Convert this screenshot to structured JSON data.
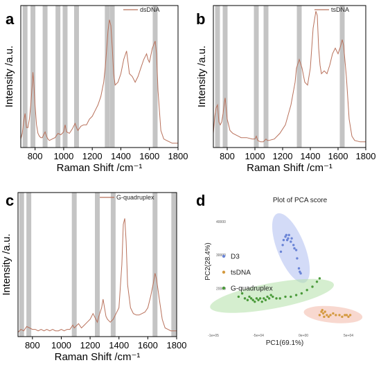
{
  "colors": {
    "spectrum_line": "#b8705a",
    "band": "#c4c4c4",
    "d3": "#6a84d6",
    "tsdna": "#d49a40",
    "gquad": "#4a9a3a",
    "d3_ellipse": "#aebdf0",
    "tsdna_ellipse": "#f2b8a8",
    "gquad_ellipse": "#b3e0a8"
  },
  "chart_data": [
    {
      "panel": "a",
      "type": "line",
      "xlabel": "Raman Shift /cm⁻¹",
      "ylabel": "Intensity /a.u.",
      "xlim": [
        700,
        1800
      ],
      "ylim": [
        0,
        1
      ],
      "xticks": [
        800,
        1000,
        1200,
        1400,
        1600,
        1800
      ],
      "legend": "dsDNA",
      "bands": [
        730,
        785,
        870,
        960,
        1010,
        1090,
        1305,
        1340,
        1640
      ],
      "series": [
        {
          "name": "dsDNA",
          "x": [
            700,
            710,
            720,
            730,
            740,
            750,
            760,
            770,
            780,
            785,
            790,
            800,
            810,
            820,
            830,
            840,
            850,
            860,
            870,
            880,
            890,
            900,
            920,
            940,
            960,
            980,
            1000,
            1010,
            1020,
            1040,
            1060,
            1080,
            1090,
            1100,
            1120,
            1140,
            1160,
            1180,
            1200,
            1220,
            1240,
            1260,
            1280,
            1290,
            1300,
            1310,
            1320,
            1330,
            1340,
            1350,
            1360,
            1380,
            1400,
            1420,
            1440,
            1450,
            1460,
            1480,
            1500,
            1520,
            1540,
            1560,
            1580,
            1590,
            1600,
            1620,
            1640,
            1650,
            1660,
            1680,
            1700,
            1720,
            1740,
            1760,
            1780,
            1800
          ],
          "y": [
            0.06,
            0.1,
            0.18,
            0.24,
            0.14,
            0.14,
            0.2,
            0.3,
            0.44,
            0.53,
            0.47,
            0.3,
            0.16,
            0.1,
            0.08,
            0.07,
            0.07,
            0.09,
            0.11,
            0.08,
            0.06,
            0.05,
            0.06,
            0.07,
            0.1,
            0.09,
            0.11,
            0.16,
            0.11,
            0.1,
            0.13,
            0.17,
            0.14,
            0.12,
            0.15,
            0.16,
            0.16,
            0.2,
            0.22,
            0.26,
            0.3,
            0.36,
            0.46,
            0.56,
            0.68,
            0.82,
            0.9,
            0.86,
            0.7,
            0.52,
            0.44,
            0.46,
            0.52,
            0.62,
            0.68,
            0.6,
            0.52,
            0.5,
            0.46,
            0.5,
            0.56,
            0.62,
            0.66,
            0.62,
            0.6,
            0.7,
            0.75,
            0.66,
            0.4,
            0.12,
            0.06,
            0.05,
            0.04,
            0.03,
            0.03,
            0.03
          ]
        }
      ]
    },
    {
      "panel": "b",
      "type": "line",
      "xlabel": "Raman Shift /cm⁻¹",
      "ylabel": "Intensity /a.u.",
      "xlim": [
        700,
        1800
      ],
      "ylim": [
        0,
        1
      ],
      "xticks": [
        800,
        1000,
        1200,
        1400,
        1600,
        1800
      ],
      "legend": "tsDNA",
      "bands": [
        730,
        785,
        1010,
        1080,
        1320,
        1630
      ],
      "series": [
        {
          "name": "tsDNA",
          "x": [
            700,
            710,
            720,
            730,
            740,
            750,
            760,
            770,
            780,
            785,
            790,
            800,
            820,
            840,
            860,
            880,
            900,
            940,
            980,
            1000,
            1010,
            1020,
            1040,
            1060,
            1080,
            1090,
            1100,
            1140,
            1180,
            1220,
            1260,
            1290,
            1300,
            1320,
            1340,
            1360,
            1380,
            1400,
            1420,
            1440,
            1450,
            1460,
            1470,
            1480,
            1500,
            1520,
            1540,
            1560,
            1580,
            1600,
            1620,
            1630,
            1640,
            1660,
            1680,
            1700,
            1720,
            1760,
            1800
          ],
          "y": [
            0.1,
            0.22,
            0.28,
            0.3,
            0.18,
            0.16,
            0.18,
            0.24,
            0.32,
            0.35,
            0.3,
            0.2,
            0.12,
            0.1,
            0.09,
            0.08,
            0.07,
            0.07,
            0.06,
            0.06,
            0.08,
            0.05,
            0.04,
            0.04,
            0.06,
            0.05,
            0.05,
            0.06,
            0.1,
            0.16,
            0.3,
            0.46,
            0.56,
            0.62,
            0.56,
            0.46,
            0.44,
            0.56,
            0.84,
            0.96,
            0.93,
            0.7,
            0.58,
            0.52,
            0.54,
            0.52,
            0.58,
            0.66,
            0.7,
            0.66,
            0.72,
            0.76,
            0.72,
            0.5,
            0.2,
            0.08,
            0.05,
            0.04,
            0.04
          ]
        }
      ]
    },
    {
      "panel": "c",
      "type": "line",
      "xlabel": "Raman Shift /cm⁻¹",
      "ylabel": "Intensity /a.u.",
      "xlim": [
        700,
        1800
      ],
      "ylim": [
        0,
        1
      ],
      "xticks": [
        800,
        1000,
        1200,
        1400,
        1600,
        1800
      ],
      "legend": "G-quadruplex",
      "bands": [
        725,
        775,
        1090,
        1250,
        1360,
        1650,
        1780
      ],
      "series": [
        {
          "name": "G-quadruplex",
          "x": [
            700,
            720,
            740,
            760,
            780,
            800,
            820,
            840,
            860,
            880,
            900,
            920,
            940,
            960,
            980,
            1000,
            1020,
            1040,
            1060,
            1080,
            1090,
            1100,
            1120,
            1140,
            1160,
            1180,
            1200,
            1220,
            1240,
            1250,
            1260,
            1280,
            1290,
            1300,
            1310,
            1320,
            1340,
            1360,
            1380,
            1400,
            1420,
            1430,
            1440,
            1450,
            1460,
            1480,
            1500,
            1520,
            1540,
            1560,
            1580,
            1600,
            1620,
            1640,
            1650,
            1660,
            1680,
            1700,
            1720,
            1740,
            1760,
            1780,
            1800
          ],
          "y": [
            0.03,
            0.05,
            0.04,
            0.07,
            0.06,
            0.05,
            0.05,
            0.04,
            0.05,
            0.04,
            0.05,
            0.04,
            0.05,
            0.04,
            0.04,
            0.05,
            0.04,
            0.05,
            0.05,
            0.08,
            0.06,
            0.07,
            0.09,
            0.06,
            0.08,
            0.1,
            0.12,
            0.16,
            0.12,
            0.1,
            0.14,
            0.2,
            0.26,
            0.2,
            0.14,
            0.12,
            0.1,
            0.12,
            0.16,
            0.2,
            0.5,
            0.78,
            0.82,
            0.66,
            0.36,
            0.2,
            0.16,
            0.15,
            0.15,
            0.16,
            0.17,
            0.2,
            0.28,
            0.38,
            0.44,
            0.4,
            0.26,
            0.12,
            0.06,
            0.05,
            0.04,
            0.04,
            0.04
          ]
        }
      ]
    },
    {
      "panel": "d",
      "type": "scatter",
      "title": "Plot of PCA score",
      "xlabel": "PC1(69.1%)",
      "ylabel": "PC2(28.4%)",
      "xlim": [
        -100000,
        80000
      ],
      "ylim": [
        7000,
        45000
      ],
      "xticks": [
        -100000,
        -50000,
        0,
        50000
      ],
      "xtick_labels": [
        "-1e+05",
        "-5e+04",
        "0e+00",
        "5e+04"
      ],
      "yticks": [
        20000,
        30000,
        40000
      ],
      "ytick_labels": [
        "20000",
        "30000",
        "40000"
      ],
      "legend": "left",
      "series": [
        {
          "name": "D3",
          "x": [
            -25000,
            -23000,
            -22000,
            -20000,
            -19000,
            -18000,
            -17000,
            -16000,
            -14000,
            -13000,
            -11000,
            -10000,
            -8000,
            -7000,
            -5000,
            -4000,
            -3000
          ],
          "y": [
            31000,
            33000,
            34500,
            35500,
            36000,
            34500,
            35000,
            36000,
            34000,
            35000,
            33000,
            32000,
            31500,
            29000,
            26000,
            25000,
            24500
          ]
        },
        {
          "name": "tsDNA",
          "x": [
            18000,
            20000,
            21000,
            22000,
            23000,
            24000,
            26000,
            28000,
            30000,
            33000,
            36000,
            40000,
            43000,
            46000,
            48000,
            50000,
            52000
          ],
          "y": [
            12000,
            13000,
            13500,
            12500,
            11500,
            13000,
            12000,
            11500,
            12000,
            12500,
            12000,
            12000,
            11500,
            12000,
            12000,
            11500,
            12000
          ]
        },
        {
          "name": "G-quadruplex",
          "x": [
            -72000,
            -68000,
            -65000,
            -62000,
            -60000,
            -58000,
            -56000,
            -54000,
            -52000,
            -50000,
            -48000,
            -46000,
            -44000,
            -42000,
            -40000,
            -38000,
            -36000,
            -34000,
            -30000,
            -26000,
            -20000,
            -14000,
            -8000,
            -2000,
            4000,
            10000,
            15000,
            18000
          ],
          "y": [
            17500,
            18500,
            17000,
            16500,
            17500,
            17000,
            16500,
            16000,
            17000,
            16500,
            17000,
            16000,
            17000,
            16500,
            17500,
            17000,
            18000,
            17500,
            17000,
            17000,
            17500,
            17500,
            18000,
            18500,
            19500,
            20500,
            22000,
            23000
          ]
        }
      ]
    }
  ]
}
